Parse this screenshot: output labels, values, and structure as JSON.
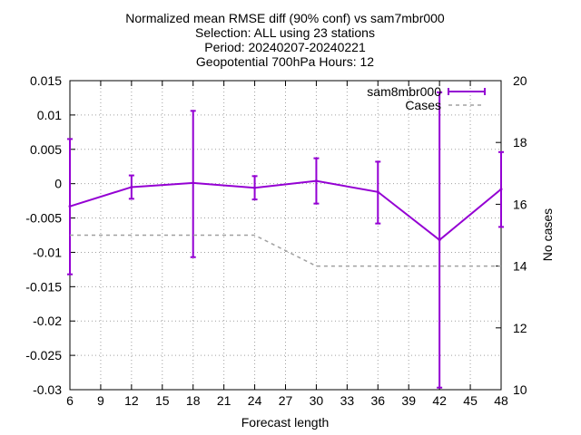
{
  "chart_data": {
    "type": "line",
    "title_lines": [
      "Normalized mean RMSE diff (90% conf) vs sam7mbr000",
      "Selection: ALL using    23 stations",
      "Period: 20240207-20240221",
      "Geopotential 700hPa   Hours: 12"
    ],
    "xlabel": "Forecast length",
    "ylabel": "",
    "y2label": "No cases",
    "xlim": [
      6,
      48
    ],
    "ylim": [
      -0.03,
      0.015
    ],
    "y2lim": [
      10,
      20
    ],
    "xticks": [
      "6",
      "9",
      "12",
      "15",
      "18",
      "21",
      "24",
      "27",
      "30",
      "33",
      "36",
      "39",
      "42",
      "45",
      "48"
    ],
    "yticks": [
      "0.015",
      "0.01",
      "0.005",
      "0",
      "-0.005",
      "-0.01",
      "-0.015",
      "-0.02",
      "-0.025",
      "-0.03"
    ],
    "y2ticks": [
      "20",
      "18",
      "16",
      "14",
      "12",
      "10"
    ],
    "grid": true,
    "legend_position": "top-right",
    "colors": {
      "series": "#9400d3",
      "cases": "#a0a0a0"
    },
    "series": [
      {
        "name": "sam8mbr000",
        "axis": "left",
        "style": "line-errorbars",
        "x": [
          6,
          12,
          18,
          24,
          30,
          36,
          42,
          48
        ],
        "y": [
          -0.0033,
          -0.0005,
          0.0001,
          -0.0006,
          0.0004,
          -0.0012,
          -0.0082,
          -0.0008
        ],
        "err_low": [
          -0.0132,
          -0.0022,
          -0.0107,
          -0.0023,
          -0.0029,
          -0.0058,
          -0.0297,
          -0.0063
        ],
        "err_high": [
          0.0065,
          0.0012,
          0.0106,
          0.0011,
          0.0037,
          0.0032,
          0.0133,
          0.0046
        ]
      },
      {
        "name": "Cases",
        "axis": "right",
        "style": "dashed",
        "x": [
          6,
          12,
          18,
          24,
          30,
          36,
          42,
          48
        ],
        "y": [
          15,
          15,
          15,
          15,
          14,
          14,
          14,
          14
        ]
      }
    ]
  }
}
